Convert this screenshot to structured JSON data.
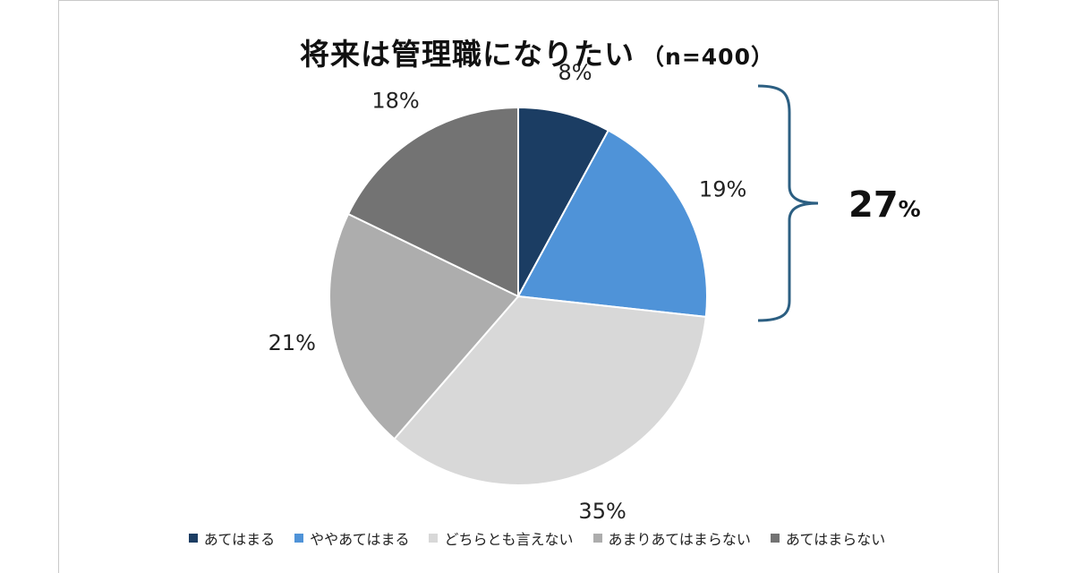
{
  "chart_data": {
    "type": "pie",
    "title": "将来は管理職になりたい",
    "subtitle": "（n=400）",
    "slices": [
      {
        "label": "あてはまる",
        "value": 8,
        "display": "8%",
        "color": "#1b3d63"
      },
      {
        "label": "ややあてはまる",
        "value": 19,
        "display": "19%",
        "color": "#4f93d8"
      },
      {
        "label": "どちらとも言えない",
        "value": 35,
        "display": "35%",
        "color": "#d8d8d8"
      },
      {
        "label": "あまりあてはまらない",
        "value": 21,
        "display": "21%",
        "color": "#adadad"
      },
      {
        "label": "あてはまらない",
        "value": 18,
        "display": "18%",
        "color": "#737373"
      }
    ],
    "annotation": {
      "value": "27",
      "unit": "%",
      "bracket_color": "#2c5f82"
    },
    "legend_position": "bottom"
  }
}
